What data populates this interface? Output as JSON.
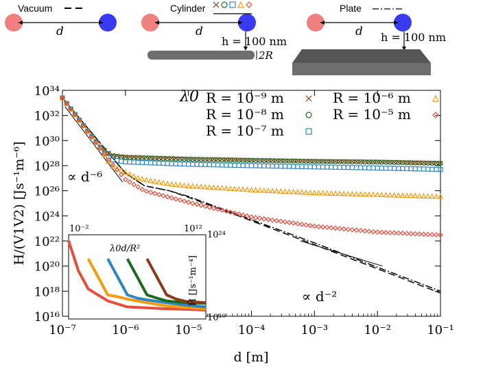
{
  "schematics": {
    "vacuum": {
      "label": "Vacuum",
      "d": "d"
    },
    "cylinder": {
      "label": "Cylinder",
      "d": "d",
      "h": "h = 100 nm",
      "r": "2R",
      "marker_symbols": [
        "×",
        "⊙",
        "⊡",
        "△",
        "◇"
      ]
    },
    "plate": {
      "label": "Plate",
      "d": "d",
      "h": "h = 100 nm"
    }
  },
  "colors": {
    "cross": "#8B3A1A",
    "circle": "#1E6B1E",
    "square": "#2E86C1",
    "triangle": "#F39C12",
    "diamond": "#E74C3C",
    "atom_red": "#F08080",
    "atom_blue": "#3A3AF0",
    "plate": "#6E6E6E"
  },
  "chart_data": [
    {
      "type": "line",
      "xscale": "log",
      "yscale": "log",
      "xlim": [
        1e-07,
        0.1
      ],
      "ylim": [
        1e+16,
        1e+34
      ],
      "xlabel": "d [m]",
      "ylabel": "H/(V1V2) [Js⁻¹m⁻⁶]",
      "xticks": [
        "10⁻⁷",
        "10⁻⁶",
        "10⁻⁵",
        "10⁻⁴",
        "10⁻³",
        "10⁻²",
        "10⁻¹"
      ],
      "yticks": [
        "10¹⁶",
        "10¹⁸",
        "10²⁰",
        "10²²",
        "10²⁴",
        "10²⁶",
        "10²⁸",
        "10³⁰",
        "10³²",
        "10³⁴"
      ],
      "legend_title": "λ0",
      "legend": [
        {
          "text": "R = 10⁻⁹ m",
          "marker": "cross"
        },
        {
          "text": "R = 10⁻⁸ m",
          "marker": "circle"
        },
        {
          "text": "R = 10⁻⁷ m",
          "marker": "square"
        },
        {
          "text": "R = 10⁻⁶ m",
          "marker": "triangle"
        },
        {
          "text": "R = 10⁻⁵ m",
          "marker": "diamond"
        }
      ],
      "annotations": [
        "∝ d⁻⁶",
        "∝ d⁻²"
      ],
      "series": [
        {
          "name": "R = 10⁻⁹ m",
          "marker": "cross",
          "x": [
            1e-07,
            2e-07,
            4e-07,
            6e-07,
            1e-06,
            1e-05,
            0.0001,
            0.001,
            0.01,
            0.1
          ],
          "y": [
            2.5e+33,
            2.5e+31,
            3e+29,
            7e+28,
            5e+28,
            3.5e+28,
            2.8e+28,
            2.3e+28,
            2e+28,
            1.6e+28
          ]
        },
        {
          "name": "R = 10⁻⁸ m",
          "marker": "circle",
          "x": [
            1e-07,
            2e-07,
            4e-07,
            6e-07,
            1e-06,
            1e-05,
            0.0001,
            0.001,
            0.01,
            0.1
          ],
          "y": [
            2.5e+33,
            2.5e+31,
            3e+29,
            6e+28,
            4.5e+28,
            3.2e+28,
            2.6e+28,
            2.2e+28,
            1.9e+28,
            1.5e+28
          ]
        },
        {
          "name": "R = 10⁻⁷ m",
          "marker": "square",
          "x": [
            1e-07,
            2e-07,
            4e-07,
            6e-07,
            1e-06,
            1e-05,
            0.0001,
            0.001,
            0.01,
            0.1
          ],
          "y": [
            2.5e+33,
            2.5e+31,
            2.5e+29,
            3e+28,
            2e+28,
            1.3e+28,
            1e+28,
            8e+27,
            6.5e+27,
            5e+27
          ]
        },
        {
          "name": "R = 10⁻⁶ m",
          "marker": "triangle",
          "x": [
            1e-07,
            2e-07,
            4e-07,
            6e-07,
            1e-06,
            1.5e-06,
            2e-06,
            5e-06,
            1e-05,
            0.0001,
            0.001,
            0.01,
            0.1
          ],
          "y": [
            2.5e+33,
            2.5e+31,
            2.5e+29,
            1e+28,
            3e+27,
            1.2e+27,
            8e+26,
            3.5e+26,
            2.5e+26,
            1.2e+26,
            7e+25,
            5e+25,
            3.5e+25
          ]
        },
        {
          "name": "R = 10⁻⁵ m",
          "marker": "diamond",
          "x": [
            1e-07,
            2e-07,
            4e-07,
            6e-07,
            1e-06,
            2e-06,
            5e-06,
            1e-05,
            0.0001,
            0.001,
            0.01,
            0.1
          ],
          "y": [
            2.5e+33,
            2.5e+31,
            2.5e+29,
            1.5e+28,
            8e+26,
            1e+26,
            3e+25,
            1.2e+25,
            8e+23,
            1.5e+23,
            5e+22,
            3e+22
          ]
        },
        {
          "name": "vacuum",
          "style": "dash",
          "x": [
            1e-07,
            1e-06,
            2e-06,
            5e-06,
            1e-05,
            0.0001,
            0.001,
            0.01,
            0.1
          ],
          "y": [
            2.5e+33,
            2.5e+27,
            2.5e+26,
            1e+26,
            3e+25,
            4e+23,
            5e+21,
            6e+19,
            7e+17
          ]
        },
        {
          "name": "plate",
          "style": "dashdot",
          "x": [
            1e-07,
            1e-06,
            2e-06,
            5e-06,
            1e-05,
            0.0001,
            0.001,
            0.01,
            0.1
          ],
          "y": [
            2.5e+33,
            2.5e+27,
            2.5e+26,
            1e+26,
            3.5e+25,
            5e+23,
            7e+21,
            8e+19,
            1e+18
          ]
        },
        {
          "name": "d-6 guide",
          "style": "solid-thin",
          "x": [
            1.1e-07,
            9e-07
          ],
          "y": [
            5e+32,
            5e+26
          ]
        },
        {
          "name": "d-2 guide",
          "style": "solid-thin",
          "x": [
            0.0006,
            0.012
          ],
          "y": [
            1e+22,
            1e+20
          ]
        }
      ]
    },
    {
      "type": "line",
      "xscale": "log",
      "yscale": "log",
      "xlim": [
        0.01,
        1000000000000.0
      ],
      "ylim": [
        10000000000.0,
        1e+24
      ],
      "xlabel": "λ0d/R²",
      "ylabel": "H̃ [Js⁻¹m⁻⁴]",
      "xticks": [
        "10⁻²",
        "10¹²"
      ],
      "yticks": [
        "10¹⁰",
        "10²⁴"
      ],
      "series": [
        {
          "name": "R = 10⁻⁵ m",
          "marker": "diamond",
          "x": [
            0.01,
            0.1,
            1,
            10,
            100,
            10000.0,
            1000000.0,
            100000000.0,
            10000000000.0,
            1000000000000.0
          ],
          "y": [
            1e+23,
            1e+18,
            1000000000000000.0,
            100000000000000.0,
            10000000000000.0,
            1000000000000.0,
            700000000000.0,
            500000000000.0,
            400000000000.0,
            300000000000.0
          ]
        },
        {
          "name": "R = 10⁻⁶ m",
          "marker": "triangle",
          "x": [
            1,
            10,
            100,
            1000.0,
            10000.0,
            1000000.0,
            100000000.0,
            10000000000.0,
            1000000000000.0
          ],
          "y": [
            1e+20,
            1e+17,
            100000000000000.0,
            50000000000000.0,
            20000000000000.0,
            5000000000000.0,
            1500000000000.0,
            800000000000.0,
            500000000000.0
          ]
        },
        {
          "name": "R = 10⁻⁷ m",
          "marker": "square",
          "x": [
            100,
            1000.0,
            10000.0,
            100000.0,
            1000000.0,
            100000000.0,
            10000000000.0,
            1000000000000.0
          ],
          "y": [
            1e+20,
            1e+17,
            100000000000000.0,
            30000000000000.0,
            15000000000000.0,
            5000000000000.0,
            2000000000000.0,
            1000000000000.0
          ]
        },
        {
          "name": "R = 10⁻⁸ m",
          "marker": "circle",
          "x": [
            10000.0,
            100000.0,
            1000000.0,
            10000000.0,
            100000000.0,
            10000000000.0,
            1000000000000.0
          ],
          "y": [
            1e+20,
            1e+17,
            100000000000000.0,
            30000000000000.0,
            10000000000000.0,
            5000000000000.0,
            4000000000000.0
          ]
        },
        {
          "name": "R = 10⁻⁹ m",
          "marker": "cross",
          "x": [
            1000000.0,
            10000000.0,
            100000000.0,
            1000000000.0,
            10000000000.0,
            1000000000000.0
          ],
          "y": [
            1e+20,
            1e+17,
            100000000000000.0,
            20000000000000.0,
            8000000000000.0,
            5000000000000.0
          ]
        }
      ]
    }
  ]
}
